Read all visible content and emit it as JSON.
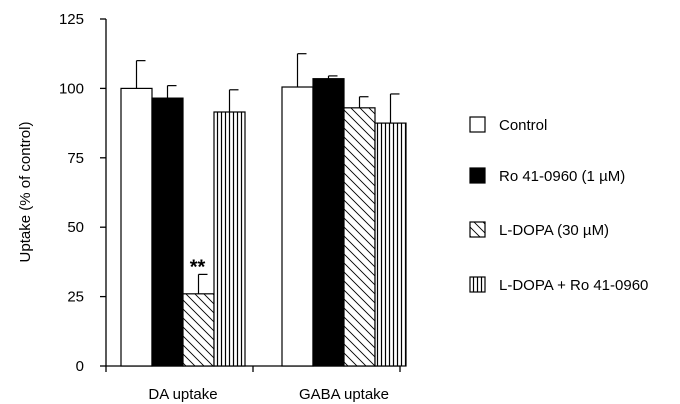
{
  "chart_data": {
    "type": "bar",
    "categories": [
      "DA uptake",
      "GABA uptake"
    ],
    "ylabel": "Uptake (% of control)",
    "ylim": [
      0,
      125
    ],
    "yticks": [
      0,
      25,
      50,
      75,
      100,
      125
    ],
    "grid": false,
    "legend_position": "right",
    "series": [
      {
        "name": "Control",
        "fill": "white",
        "values": [
          100,
          100.5
        ],
        "errors": [
          10,
          12
        ]
      },
      {
        "name": "Ro 41-0960 (1 µM)",
        "fill": "black",
        "values": [
          96.5,
          103.5
        ],
        "errors": [
          4.5,
          1
        ]
      },
      {
        "name": "L-DOPA (30 µM)",
        "fill": "diagonal",
        "values": [
          26,
          93
        ],
        "errors": [
          7,
          4
        ]
      },
      {
        "name": "L-DOPA + Ro 41-0960",
        "fill": "vertical",
        "values": [
          91.5,
          87.5
        ],
        "errors": [
          8,
          10.5
        ]
      }
    ],
    "annotations": [
      {
        "text": "**",
        "category": 0,
        "series": 2
      }
    ]
  }
}
